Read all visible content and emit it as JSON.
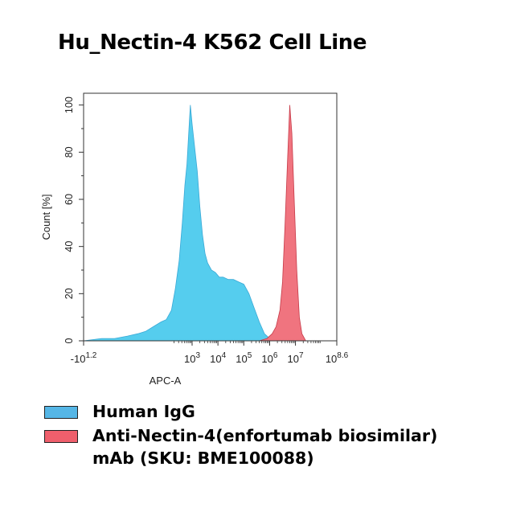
{
  "title": "Hu_Nectin-4 K562 Cell Line",
  "chart_data": {
    "type": "area",
    "title": "Hu_Nectin-4 K562 Cell Line",
    "xlabel": "APC-A",
    "ylabel": "Count [%]",
    "x_scale": "biexponential (log10)",
    "xlim_log10": [
      -1.2,
      8.6
    ],
    "ylim": [
      0,
      105
    ],
    "x_ticks": [
      {
        "pos": -1.2,
        "base": "-10",
        "exp": "1.2"
      },
      {
        "pos": 3,
        "base": "10",
        "exp": "3"
      },
      {
        "pos": 4,
        "base": "10",
        "exp": "4"
      },
      {
        "pos": 5,
        "base": "10",
        "exp": "5"
      },
      {
        "pos": 6,
        "base": "10",
        "exp": "6"
      },
      {
        "pos": 7,
        "base": "10",
        "exp": "7"
      },
      {
        "pos": 8.6,
        "base": "10",
        "exp": "8.6"
      }
    ],
    "y_ticks": [
      0,
      20,
      40,
      60,
      80,
      100
    ],
    "grid": false,
    "legend_position": "bottom",
    "series": [
      {
        "name": "Human IgG",
        "color": "#55cdee",
        "points": [
          [
            -1.2,
            0
          ],
          [
            -0.5,
            1
          ],
          [
            0,
            1
          ],
          [
            0.5,
            2
          ],
          [
            0.9,
            3
          ],
          [
            1.2,
            4
          ],
          [
            1.5,
            6
          ],
          [
            1.8,
            8
          ],
          [
            2.0,
            9
          ],
          [
            2.2,
            13
          ],
          [
            2.35,
            22
          ],
          [
            2.5,
            34
          ],
          [
            2.62,
            50
          ],
          [
            2.72,
            66
          ],
          [
            2.8,
            75
          ],
          [
            2.88,
            90
          ],
          [
            2.93,
            100
          ],
          [
            3.0,
            92
          ],
          [
            3.1,
            82
          ],
          [
            3.2,
            72
          ],
          [
            3.3,
            57
          ],
          [
            3.4,
            45
          ],
          [
            3.5,
            37
          ],
          [
            3.6,
            33
          ],
          [
            3.75,
            30
          ],
          [
            3.9,
            29
          ],
          [
            4.05,
            27
          ],
          [
            4.2,
            27
          ],
          [
            4.4,
            26
          ],
          [
            4.6,
            26
          ],
          [
            4.8,
            25
          ],
          [
            5.0,
            24
          ],
          [
            5.2,
            20
          ],
          [
            5.4,
            14
          ],
          [
            5.6,
            8
          ],
          [
            5.8,
            3
          ],
          [
            6.0,
            1
          ],
          [
            6.2,
            0
          ]
        ]
      },
      {
        "name": "Anti-Nectin-4(enfortumab biosimilar) mAb (SKU: BME100088)",
        "legend_lines": [
          "Anti-Nectin-4(enfortumab biosimilar)",
          "mAb (SKU: BME100088)"
        ],
        "color": "#f0747f",
        "points": [
          [
            5.6,
            0
          ],
          [
            5.9,
            1
          ],
          [
            6.1,
            3
          ],
          [
            6.25,
            6
          ],
          [
            6.4,
            13
          ],
          [
            6.5,
            25
          ],
          [
            6.6,
            50
          ],
          [
            6.7,
            78
          ],
          [
            6.78,
            100
          ],
          [
            6.86,
            88
          ],
          [
            6.95,
            60
          ],
          [
            7.05,
            30
          ],
          [
            7.15,
            10
          ],
          [
            7.25,
            3
          ],
          [
            7.4,
            0
          ]
        ]
      }
    ]
  },
  "legend": {
    "items": [
      {
        "label": "Human IgG",
        "color": "#55b6e6"
      },
      {
        "label_line1": "Anti-Nectin-4(enfortumab biosimilar)",
        "label_line2": "mAb (SKU: BME100088)",
        "color": "#ef5f6c"
      }
    ]
  }
}
